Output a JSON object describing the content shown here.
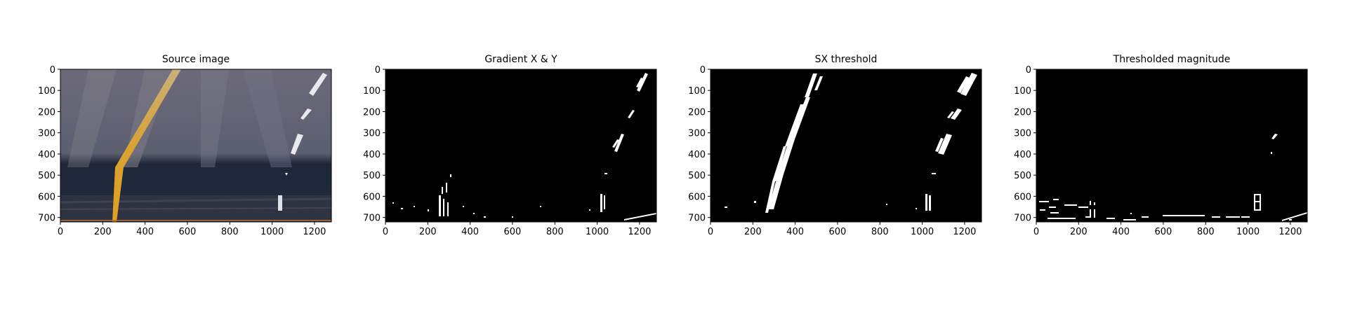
{
  "panels": [
    {
      "id": "source",
      "title": "Source image",
      "x_ticks": [
        "0",
        "200",
        "400",
        "600",
        "800",
        "1000",
        "1200"
      ],
      "y_ticks": [
        "0",
        "100",
        "200",
        "300",
        "400",
        "500",
        "600",
        "700"
      ]
    },
    {
      "id": "gradient",
      "title": "Gradient X & Y",
      "x_ticks": [
        "0",
        "200",
        "400",
        "600",
        "800",
        "1000",
        "1200"
      ],
      "y_ticks": [
        "0",
        "100",
        "200",
        "300",
        "400",
        "500",
        "600",
        "700"
      ]
    },
    {
      "id": "sx",
      "title": "SX threshold",
      "x_ticks": [
        "0",
        "200",
        "400",
        "600",
        "800",
        "1000",
        "1200"
      ],
      "y_ticks": [
        "0",
        "100",
        "200",
        "300",
        "400",
        "500",
        "600",
        "700"
      ]
    },
    {
      "id": "mag",
      "title": "Thresholded magnitude",
      "x_ticks": [
        "0",
        "200",
        "400",
        "600",
        "800",
        "1000",
        "1200"
      ],
      "y_ticks": [
        "0",
        "100",
        "200",
        "300",
        "400",
        "500",
        "600",
        "700"
      ]
    }
  ],
  "colors": {
    "background": "#ffffff",
    "binary_bg": "#000000",
    "binary_fg": "#ffffff",
    "lane_yellow": "#d7a73a"
  }
}
